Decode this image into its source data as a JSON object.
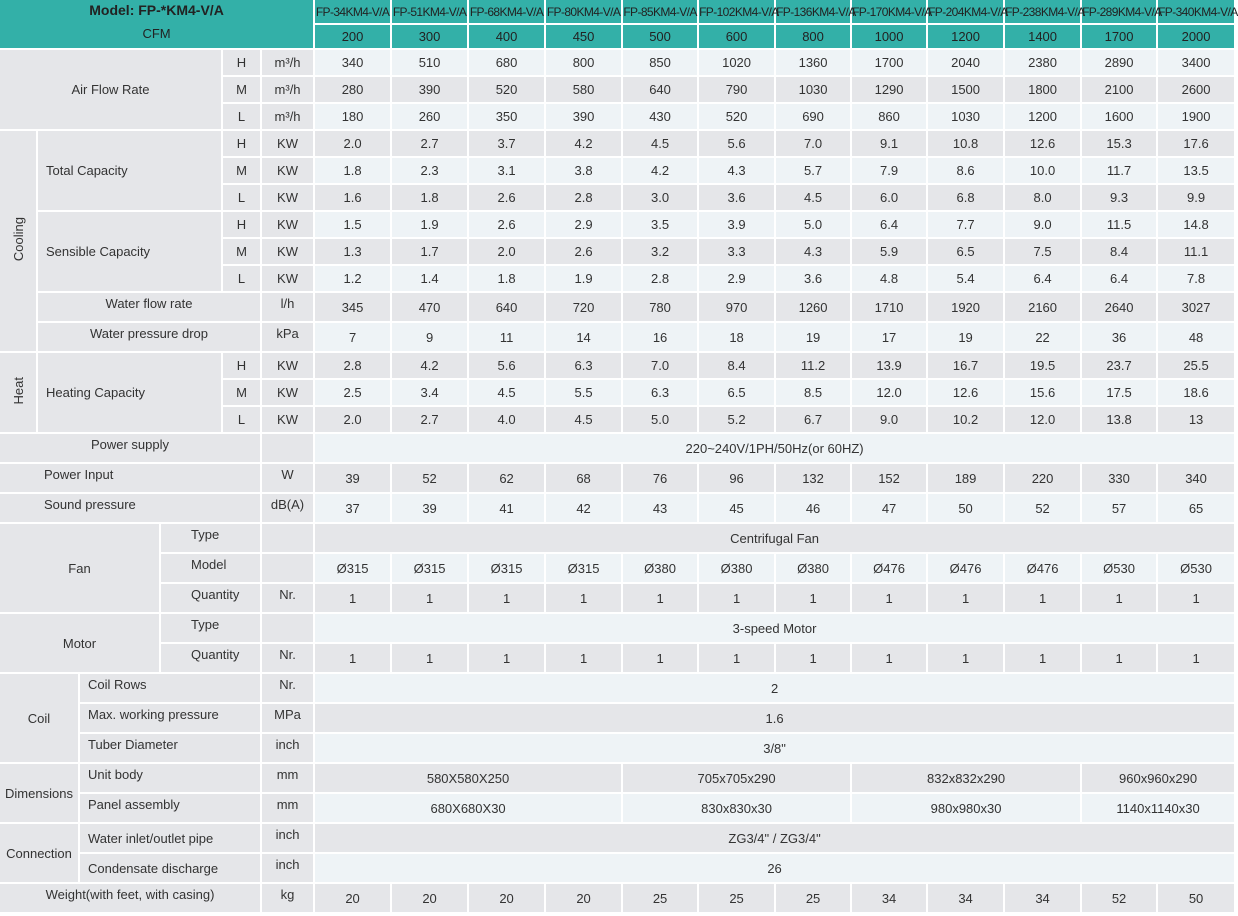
{
  "header": {
    "model_label": "Model: FP-*KM4-V/A",
    "cfm_label": "CFM",
    "models": [
      "FP-34KM4-V/A",
      "FP-51KM4-V/A",
      "FP-68KM4-V/A",
      "FP-80KM4-V/A",
      "FP-85KM4-V/A",
      "FP-102KM4-V/A",
      "FP-136KM4-V/A",
      "FP-170KM4-V/A",
      "FP-204KM4-V/A",
      "FP-238KM4-V/A",
      "FP-289KM4-V/A",
      "FP-340KM4-V/A"
    ],
    "cfm": [
      "200",
      "300",
      "400",
      "450",
      "500",
      "600",
      "800",
      "1000",
      "1200",
      "1400",
      "1700",
      "2000"
    ]
  },
  "air_flow": {
    "label": "Air Flow Rate",
    "rows": [
      {
        "level": "H",
        "unit": "m³/h",
        "values": [
          "340",
          "510",
          "680",
          "800",
          "850",
          "1020",
          "1360",
          "1700",
          "2040",
          "2380",
          "2890",
          "3400"
        ]
      },
      {
        "level": "M",
        "unit": "m³/h",
        "values": [
          "280",
          "390",
          "520",
          "580",
          "640",
          "790",
          "1030",
          "1290",
          "1500",
          "1800",
          "2100",
          "2600"
        ]
      },
      {
        "level": "L",
        "unit": "m³/h",
        "values": [
          "180",
          "260",
          "350",
          "390",
          "430",
          "520",
          "690",
          "860",
          "1030",
          "1200",
          "1600",
          "1900"
        ]
      }
    ]
  },
  "cooling": {
    "label": "Cooling",
    "total_capacity": {
      "label": "Total Capacity",
      "rows": [
        {
          "level": "H",
          "unit": "KW",
          "values": [
            "2.0",
            "2.7",
            "3.7",
            "4.2",
            "4.5",
            "5.6",
            "7.0",
            "9.1",
            "10.8",
            "12.6",
            "15.3",
            "17.6"
          ]
        },
        {
          "level": "M",
          "unit": "KW",
          "values": [
            "1.8",
            "2.3",
            "3.1",
            "3.8",
            "4.2",
            "4.3",
            "5.7",
            "7.9",
            "8.6",
            "10.0",
            "11.7",
            "13.5"
          ]
        },
        {
          "level": "L",
          "unit": "KW",
          "values": [
            "1.6",
            "1.8",
            "2.6",
            "2.8",
            "3.0",
            "3.6",
            "4.5",
            "6.0",
            "6.8",
            "8.0",
            "9.3",
            "9.9"
          ]
        }
      ]
    },
    "sensible_capacity": {
      "label": "Sensible Capacity",
      "rows": [
        {
          "level": "H",
          "unit": "KW",
          "values": [
            "1.5",
            "1.9",
            "2.6",
            "2.9",
            "3.5",
            "3.9",
            "5.0",
            "6.4",
            "7.7",
            "9.0",
            "11.5",
            "14.8"
          ]
        },
        {
          "level": "M",
          "unit": "KW",
          "values": [
            "1.3",
            "1.7",
            "2.0",
            "2.6",
            "3.2",
            "3.3",
            "4.3",
            "5.9",
            "6.5",
            "7.5",
            "8.4",
            "11.1"
          ]
        },
        {
          "level": "L",
          "unit": "KW",
          "values": [
            "1.2",
            "1.4",
            "1.8",
            "1.9",
            "2.8",
            "2.9",
            "3.6",
            "4.8",
            "5.4",
            "6.4",
            "6.4",
            "7.8"
          ]
        }
      ]
    },
    "water_flow_rate": {
      "label": "Water flow rate",
      "unit": "l/h",
      "values": [
        "345",
        "470",
        "640",
        "720",
        "780",
        "970",
        "1260",
        "1710",
        "1920",
        "2160",
        "2640",
        "3027"
      ]
    },
    "water_pressure_drop": {
      "label": "Water pressure drop",
      "unit": "kPa",
      "values": [
        "7",
        "9",
        "11",
        "14",
        "16",
        "18",
        "19",
        "17",
        "19",
        "22",
        "36",
        "48"
      ]
    }
  },
  "heat": {
    "label": "Heat",
    "heating_capacity": {
      "label": "Heating Capacity",
      "rows": [
        {
          "level": "H",
          "unit": "KW",
          "values": [
            "2.8",
            "4.2",
            "5.6",
            "6.3",
            "7.0",
            "8.4",
            "11.2",
            "13.9",
            "16.7",
            "19.5",
            "23.7",
            "25.5"
          ]
        },
        {
          "level": "M",
          "unit": "KW",
          "values": [
            "2.5",
            "3.4",
            "4.5",
            "5.5",
            "6.3",
            "6.5",
            "8.5",
            "12.0",
            "12.6",
            "15.6",
            "17.5",
            "18.6"
          ]
        },
        {
          "level": "L",
          "unit": "KW",
          "values": [
            "2.0",
            "2.7",
            "4.0",
            "4.5",
            "5.0",
            "5.2",
            "6.7",
            "9.0",
            "10.2",
            "12.0",
            "13.8",
            "13"
          ]
        }
      ]
    }
  },
  "power_supply": {
    "label": "Power supply",
    "value": "220~240V/1PH/50Hz(or 60HZ)"
  },
  "power_input": {
    "label": "Power Input",
    "unit": "W",
    "values": [
      "39",
      "52",
      "62",
      "68",
      "76",
      "96",
      "132",
      "152",
      "189",
      "220",
      "330",
      "340"
    ]
  },
  "sound_pressure": {
    "label": "Sound pressure",
    "unit": "dB(A)",
    "values": [
      "37",
      "39",
      "41",
      "42",
      "43",
      "45",
      "46",
      "47",
      "50",
      "52",
      "57",
      "65"
    ]
  },
  "fan": {
    "label": "Fan",
    "type": {
      "label": "Type",
      "value": "Centrifugal Fan"
    },
    "model": {
      "label": "Model",
      "values": [
        "Ø315",
        "Ø315",
        "Ø315",
        "Ø315",
        "Ø380",
        "Ø380",
        "Ø380",
        "Ø476",
        "Ø476",
        "Ø476",
        "Ø530",
        "Ø530"
      ]
    },
    "quantity": {
      "label": "Quantity",
      "unit": "Nr.",
      "values": [
        "1",
        "1",
        "1",
        "1",
        "1",
        "1",
        "1",
        "1",
        "1",
        "1",
        "1",
        "1"
      ]
    }
  },
  "motor": {
    "label": "Motor",
    "type": {
      "label": "Type",
      "value": "3-speed Motor"
    },
    "quantity": {
      "label": "Quantity",
      "unit": "Nr.",
      "values": [
        "1",
        "1",
        "1",
        "1",
        "1",
        "1",
        "1",
        "1",
        "1",
        "1",
        "1",
        "1"
      ]
    }
  },
  "coil": {
    "label": "Coil",
    "rows": [
      {
        "label": "Coil Rows",
        "unit": "Nr.",
        "value": "2"
      },
      {
        "label": "Max. working pressure",
        "unit": "MPa",
        "value": "1.6"
      },
      {
        "label": "Tuber Diameter",
        "unit": "inch",
        "value": "3/8\""
      }
    ]
  },
  "dimensions": {
    "label": "Dimensions",
    "rows": [
      {
        "label": "Unit body",
        "unit": "mm",
        "values": [
          "580X580X250",
          "705x705x290",
          "832x832x290",
          "960x960x290"
        ]
      },
      {
        "label": "Panel assembly",
        "unit": "mm",
        "values": [
          "680X680X30",
          "830x830x30",
          "980x980x30",
          "1140x1140x30"
        ]
      }
    ]
  },
  "connection": {
    "label": "Connection",
    "rows": [
      {
        "label": "Water inlet/outlet pipe",
        "unit": "inch",
        "value": "ZG3/4\" / ZG3/4\""
      },
      {
        "label": "Condensate discharge",
        "unit": "inch",
        "value": "26"
      }
    ]
  },
  "weight": {
    "label": "Weight(with feet, with casing)",
    "unit": "kg",
    "values": [
      "20",
      "20",
      "20",
      "20",
      "25",
      "25",
      "25",
      "34",
      "34",
      "34",
      "52",
      "50"
    ]
  }
}
